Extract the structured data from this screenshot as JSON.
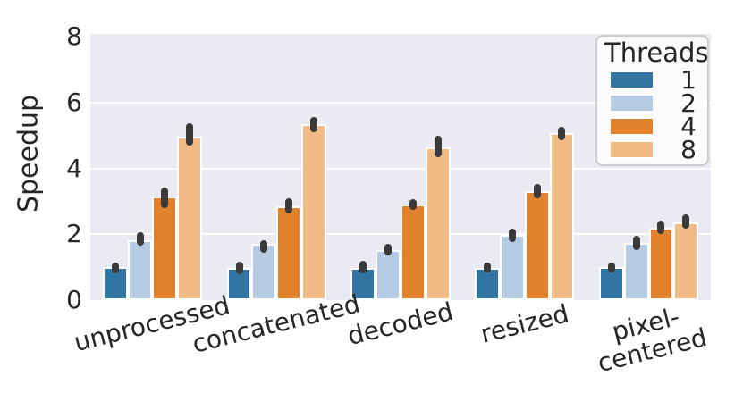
{
  "chart_data": {
    "type": "bar",
    "title": "",
    "xlabel": "",
    "ylabel": "Speedup",
    "categories": [
      "unprocessed",
      "concatenated",
      "decoded",
      "resized",
      "pixel-\ncentered"
    ],
    "series": [
      {
        "name": "1",
        "color": "#3274a1",
        "values": [
          1.0,
          0.98,
          0.98,
          0.98,
          1.0
        ],
        "error_intervals": [
          [
            0.82,
            1.14
          ],
          [
            0.8,
            1.16
          ],
          [
            0.82,
            1.19
          ],
          [
            0.83,
            1.14
          ],
          [
            0.85,
            1.13
          ]
        ]
      },
      {
        "name": "2",
        "color": "#b4cbe3",
        "values": [
          1.82,
          1.7,
          1.52,
          1.97,
          1.73
        ],
        "error_intervals": [
          [
            1.65,
            2.06
          ],
          [
            1.45,
            1.83
          ],
          [
            1.35,
            1.72
          ],
          [
            1.76,
            2.17
          ],
          [
            1.52,
            1.96
          ]
        ]
      },
      {
        "name": "4",
        "color": "#e1812c",
        "values": [
          3.14,
          2.84,
          2.91,
          3.32,
          2.19
        ],
        "error_intervals": [
          [
            2.8,
            3.42
          ],
          [
            2.62,
            3.1
          ],
          [
            2.75,
            3.07
          ],
          [
            3.08,
            3.52
          ],
          [
            2.0,
            2.42
          ]
        ]
      },
      {
        "name": "8",
        "color": "#f0bb84",
        "values": [
          4.97,
          5.34,
          4.64,
          5.07,
          2.35
        ],
        "error_intervals": [
          [
            4.69,
            5.36
          ],
          [
            5.1,
            5.55
          ],
          [
            4.35,
            4.98
          ],
          [
            4.86,
            5.27
          ],
          [
            2.17,
            2.6
          ]
        ]
      }
    ],
    "ylim": [
      0,
      8
    ],
    "yticks": [
      0,
      2,
      4,
      6,
      8
    ],
    "grid": true,
    "legend": {
      "title": "Threads",
      "position": "upper right"
    },
    "style": {
      "plot_background": "#eaeaf2",
      "grid_color": "#ffffff",
      "text_color": "#262626",
      "error_bar_color": "#3a3a3a",
      "bar_edge_color": "#ffffff",
      "legend_border_color": "#cccccc"
    }
  }
}
